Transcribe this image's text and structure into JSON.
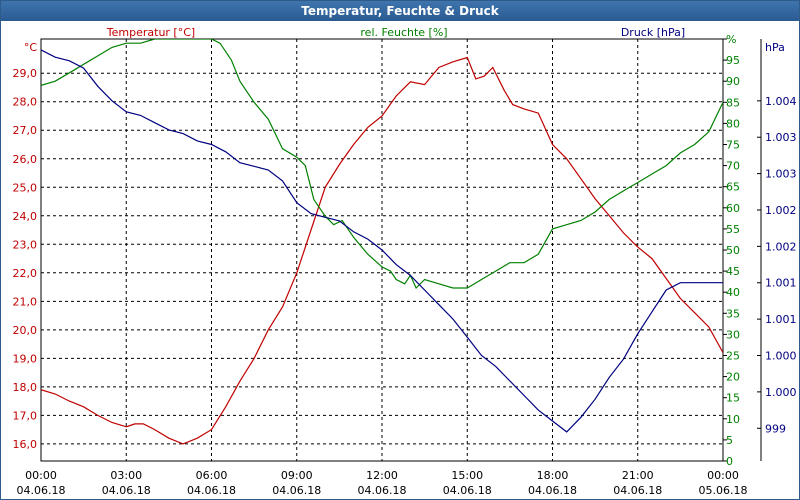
{
  "window": {
    "title": "Temperatur, Feuchte & Druck"
  },
  "chart_data": {
    "type": "line",
    "title": "Temperatur, Feuchte & Druck",
    "x_ticks": [
      {
        "time": "00:00",
        "date": "04.06.18"
      },
      {
        "time": "03:00",
        "date": "04.06.18"
      },
      {
        "time": "06:00",
        "date": "04.06.18"
      },
      {
        "time": "09:00",
        "date": "04.06.18"
      },
      {
        "time": "12:00",
        "date": "04.06.18"
      },
      {
        "time": "15:00",
        "date": "04.06.18"
      },
      {
        "time": "18:00",
        "date": "04.06.18"
      },
      {
        "time": "21:00",
        "date": "04.06.18"
      },
      {
        "time": "00:00",
        "date": "05.06.18"
      }
    ],
    "x_range_hours": [
      0,
      24
    ],
    "axes": {
      "temperature": {
        "unit": "°C",
        "label": "Temperatur [°C]",
        "color": "#c00000",
        "range": [
          15.4,
          30.2
        ],
        "ticks": [
          "16,0",
          "17,0",
          "18,0",
          "19,0",
          "20,0",
          "21,0",
          "22,0",
          "23,0",
          "24,0",
          "25,0",
          "26,0",
          "27,0",
          "28,0",
          "29,0"
        ]
      },
      "humidity": {
        "unit": "%",
        "label": "rel. Feuchte [%]",
        "color": "#008000",
        "range": [
          0,
          100
        ],
        "ticks": [
          "0",
          "5",
          "10",
          "15",
          "20",
          "25",
          "30",
          "35",
          "40",
          "45",
          "50",
          "55",
          "60",
          "65",
          "70",
          "75",
          "80",
          "85",
          "90",
          "95",
          "%"
        ]
      },
      "pressure": {
        "unit": "hPa",
        "label": "Druck [hPa]",
        "color": "#000080",
        "range": [
          998.55,
          1004.35
        ],
        "ticks": [
          "999",
          "1.000",
          "1.000",
          "1.001",
          "1.001",
          "1.002",
          "1.002",
          "1.003",
          "1.003",
          "1.004"
        ]
      }
    },
    "series": [
      {
        "name": "Temperatur [°C]",
        "axis": "temperature",
        "color": "#c00000",
        "points": [
          [
            0,
            17.9
          ],
          [
            0.5,
            17.75
          ],
          [
            1,
            17.5
          ],
          [
            1.5,
            17.3
          ],
          [
            2,
            17.0
          ],
          [
            2.5,
            16.75
          ],
          [
            3,
            16.6
          ],
          [
            3.3,
            16.7
          ],
          [
            3.6,
            16.7
          ],
          [
            4,
            16.5
          ],
          [
            4.5,
            16.2
          ],
          [
            5,
            16.0
          ],
          [
            5.5,
            16.2
          ],
          [
            6,
            16.5
          ],
          [
            6.5,
            17.3
          ],
          [
            7,
            18.2
          ],
          [
            7.5,
            19.0
          ],
          [
            8,
            20.0
          ],
          [
            8.5,
            20.8
          ],
          [
            9,
            22.0
          ],
          [
            9.5,
            23.5
          ],
          [
            10,
            25.0
          ],
          [
            10.5,
            25.8
          ],
          [
            11,
            26.5
          ],
          [
            11.5,
            27.1
          ],
          [
            12,
            27.5
          ],
          [
            12.5,
            28.2
          ],
          [
            13,
            28.7
          ],
          [
            13.5,
            28.6
          ],
          [
            14,
            29.2
          ],
          [
            14.5,
            29.4
          ],
          [
            15,
            29.55
          ],
          [
            15.3,
            28.8
          ],
          [
            15.6,
            28.9
          ],
          [
            15.9,
            29.2
          ],
          [
            16.3,
            28.4
          ],
          [
            16.6,
            27.9
          ],
          [
            17,
            27.75
          ],
          [
            17.5,
            27.6
          ],
          [
            18,
            26.5
          ],
          [
            18.5,
            26.0
          ],
          [
            19,
            25.3
          ],
          [
            19.5,
            24.6
          ],
          [
            20,
            24.0
          ],
          [
            20.5,
            23.4
          ],
          [
            21,
            22.9
          ],
          [
            21.5,
            22.5
          ],
          [
            22,
            21.8
          ],
          [
            22.5,
            21.1
          ],
          [
            23,
            20.6
          ],
          [
            23.5,
            20.1
          ],
          [
            24,
            19.2
          ]
        ]
      },
      {
        "name": "rel. Feuchte [%]",
        "axis": "humidity",
        "color": "#008000",
        "points": [
          [
            0,
            89
          ],
          [
            0.5,
            90
          ],
          [
            1,
            92
          ],
          [
            1.5,
            94
          ],
          [
            2,
            96
          ],
          [
            2.5,
            98
          ],
          [
            3,
            99
          ],
          [
            3.5,
            99
          ],
          [
            4,
            100
          ],
          [
            5,
            100
          ],
          [
            6,
            100
          ],
          [
            6.3,
            99
          ],
          [
            6.7,
            95
          ],
          [
            7,
            90
          ],
          [
            7.5,
            85
          ],
          [
            8,
            81
          ],
          [
            8.5,
            74
          ],
          [
            9,
            72
          ],
          [
            9.3,
            70
          ],
          [
            9.6,
            62
          ],
          [
            10,
            58
          ],
          [
            10.3,
            56
          ],
          [
            10.6,
            57
          ],
          [
            11,
            53
          ],
          [
            11.5,
            49
          ],
          [
            12,
            46
          ],
          [
            12.3,
            45
          ],
          [
            12.5,
            43
          ],
          [
            12.8,
            42
          ],
          [
            13,
            44
          ],
          [
            13.2,
            41
          ],
          [
            13.5,
            43
          ],
          [
            14,
            42
          ],
          [
            14.5,
            41
          ],
          [
            15,
            41
          ],
          [
            15.5,
            43
          ],
          [
            16,
            45
          ],
          [
            16.5,
            47
          ],
          [
            17,
            47
          ],
          [
            17.5,
            49
          ],
          [
            18,
            55
          ],
          [
            18.5,
            56
          ],
          [
            19,
            57
          ],
          [
            19.5,
            59
          ],
          [
            20,
            62
          ],
          [
            20.5,
            64
          ],
          [
            21,
            66
          ],
          [
            21.5,
            68
          ],
          [
            22,
            70
          ],
          [
            22.5,
            73
          ],
          [
            23,
            75
          ],
          [
            23.5,
            78
          ],
          [
            24,
            85
          ]
        ]
      },
      {
        "name": "Druck [hPa]",
        "axis": "pressure",
        "color": "#000080",
        "points": [
          [
            0,
            1004.2
          ],
          [
            0.5,
            1004.1
          ],
          [
            1,
            1004.05
          ],
          [
            1.5,
            1003.95
          ],
          [
            2,
            1003.7
          ],
          [
            2.5,
            1003.5
          ],
          [
            3,
            1003.35
          ],
          [
            3.5,
            1003.3
          ],
          [
            4,
            1003.2
          ],
          [
            4.5,
            1003.1
          ],
          [
            5,
            1003.05
          ],
          [
            5.5,
            1002.95
          ],
          [
            6,
            1002.9
          ],
          [
            6.5,
            1002.8
          ],
          [
            7,
            1002.65
          ],
          [
            7.5,
            1002.6
          ],
          [
            8,
            1002.55
          ],
          [
            8.5,
            1002.4
          ],
          [
            9,
            1002.1
          ],
          [
            9.5,
            1001.95
          ],
          [
            10,
            1001.9
          ],
          [
            10.5,
            1001.85
          ],
          [
            11,
            1001.7
          ],
          [
            11.5,
            1001.6
          ],
          [
            12,
            1001.45
          ],
          [
            12.5,
            1001.25
          ],
          [
            13,
            1001.1
          ],
          [
            13.5,
            1000.9
          ],
          [
            14,
            1000.7
          ],
          [
            14.5,
            1000.5
          ],
          [
            15,
            1000.25
          ],
          [
            15.5,
            1000.0
          ],
          [
            16,
            999.85
          ],
          [
            16.5,
            999.65
          ],
          [
            17,
            999.45
          ],
          [
            17.5,
            999.25
          ],
          [
            18,
            999.1
          ],
          [
            18.5,
            998.95
          ],
          [
            19,
            999.15
          ],
          [
            19.5,
            999.4
          ],
          [
            20,
            999.7
          ],
          [
            20.5,
            999.95
          ],
          [
            21,
            1000.3
          ],
          [
            21.5,
            1000.6
          ],
          [
            22,
            1000.9
          ],
          [
            22.5,
            1001.0
          ],
          [
            23,
            1001.0
          ],
          [
            24,
            1001.0
          ]
        ]
      }
    ],
    "grid": true
  }
}
